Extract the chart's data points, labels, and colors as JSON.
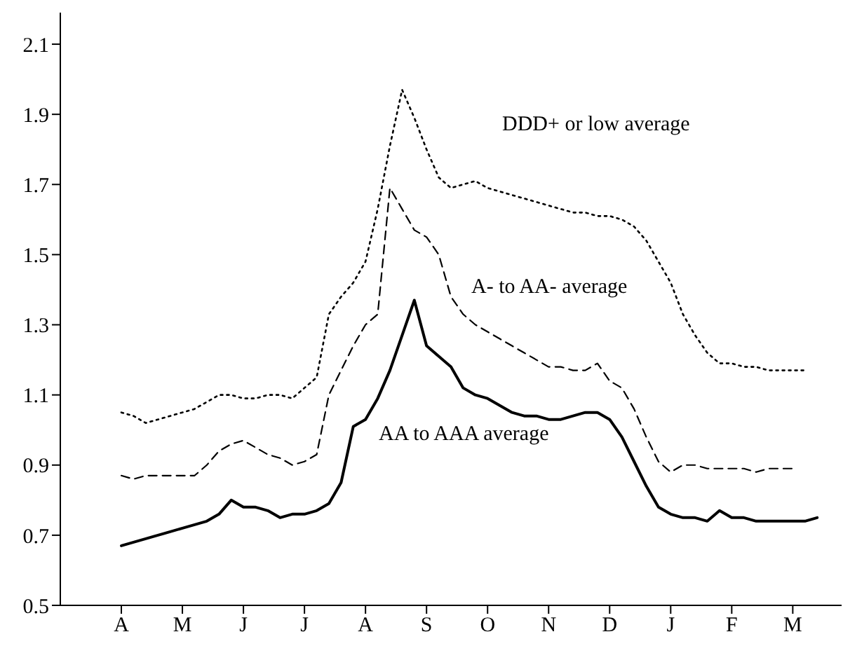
{
  "chart_data": {
    "type": "line",
    "categories": [
      "A",
      null,
      null,
      null,
      null,
      "M",
      null,
      null,
      null,
      null,
      "J",
      null,
      null,
      null,
      null,
      "J",
      null,
      null,
      null,
      null,
      "A",
      null,
      null,
      null,
      null,
      "S",
      null,
      null,
      null,
      null,
      "O",
      null,
      null,
      null,
      null,
      "N",
      null,
      null,
      null,
      null,
      "D",
      null,
      null,
      null,
      null,
      "J",
      null,
      null,
      null,
      null,
      "F",
      null,
      null,
      null,
      null,
      "M",
      null,
      null
    ],
    "ylim": [
      0.5,
      2.19
    ],
    "yticks": [
      0.5,
      0.7,
      0.9,
      1.1,
      1.3,
      1.5,
      1.7,
      1.9,
      2.1
    ],
    "marker": "none",
    "series": [
      {
        "name": "DDD+ or low average",
        "color": "#000000",
        "line_style": "dotted",
        "values": [
          1.05,
          1.04,
          1.02,
          1.03,
          1.04,
          1.05,
          1.06,
          1.08,
          1.1,
          1.1,
          1.09,
          1.09,
          1.1,
          1.1,
          1.09,
          1.12,
          1.15,
          1.33,
          1.38,
          1.42,
          1.48,
          1.63,
          1.81,
          1.97,
          1.89,
          1.8,
          1.72,
          1.69,
          1.7,
          1.71,
          1.69,
          1.68,
          1.67,
          1.66,
          1.65,
          1.64,
          1.63,
          1.62,
          1.62,
          1.61,
          1.61,
          1.6,
          1.58,
          1.54,
          1.48,
          1.42,
          1.33,
          1.27,
          1.22,
          1.19,
          1.19,
          1.18,
          1.18,
          1.17,
          1.17,
          1.17,
          1.17,
          null
        ]
      },
      {
        "name": "A- to AA- average",
        "color": "#000000",
        "line_style": "dashed",
        "values": [
          0.87,
          0.86,
          0.87,
          0.87,
          0.87,
          0.87,
          0.87,
          0.9,
          0.94,
          0.96,
          0.97,
          0.95,
          0.93,
          0.92,
          0.9,
          0.91,
          0.93,
          1.1,
          1.17,
          1.24,
          1.3,
          1.33,
          1.69,
          1.63,
          1.57,
          1.55,
          1.5,
          1.38,
          1.33,
          1.3,
          1.28,
          1.26,
          1.24,
          1.22,
          1.2,
          1.18,
          1.18,
          1.17,
          1.17,
          1.19,
          1.14,
          1.12,
          1.06,
          0.98,
          0.91,
          0.88,
          0.9,
          0.9,
          0.89,
          0.89,
          0.89,
          0.89,
          0.88,
          0.89,
          0.89,
          0.89,
          null,
          null
        ]
      },
      {
        "name": "AA to AAA average",
        "color": "#000000",
        "line_style": "solid",
        "values": [
          0.67,
          0.68,
          0.69,
          0.7,
          0.71,
          0.72,
          0.73,
          0.74,
          0.76,
          0.8,
          0.78,
          0.78,
          0.77,
          0.75,
          0.76,
          0.76,
          0.77,
          0.79,
          0.85,
          1.01,
          1.03,
          1.09,
          1.17,
          1.27,
          1.37,
          1.24,
          1.21,
          1.18,
          1.12,
          1.1,
          1.09,
          1.07,
          1.05,
          1.04,
          1.04,
          1.03,
          1.03,
          1.04,
          1.05,
          1.05,
          1.03,
          0.98,
          0.91,
          0.84,
          0.78,
          0.76,
          0.75,
          0.75,
          0.74,
          0.77,
          0.75,
          0.75,
          0.74,
          0.74,
          0.74,
          0.74,
          0.74,
          0.75
        ]
      }
    ]
  }
}
